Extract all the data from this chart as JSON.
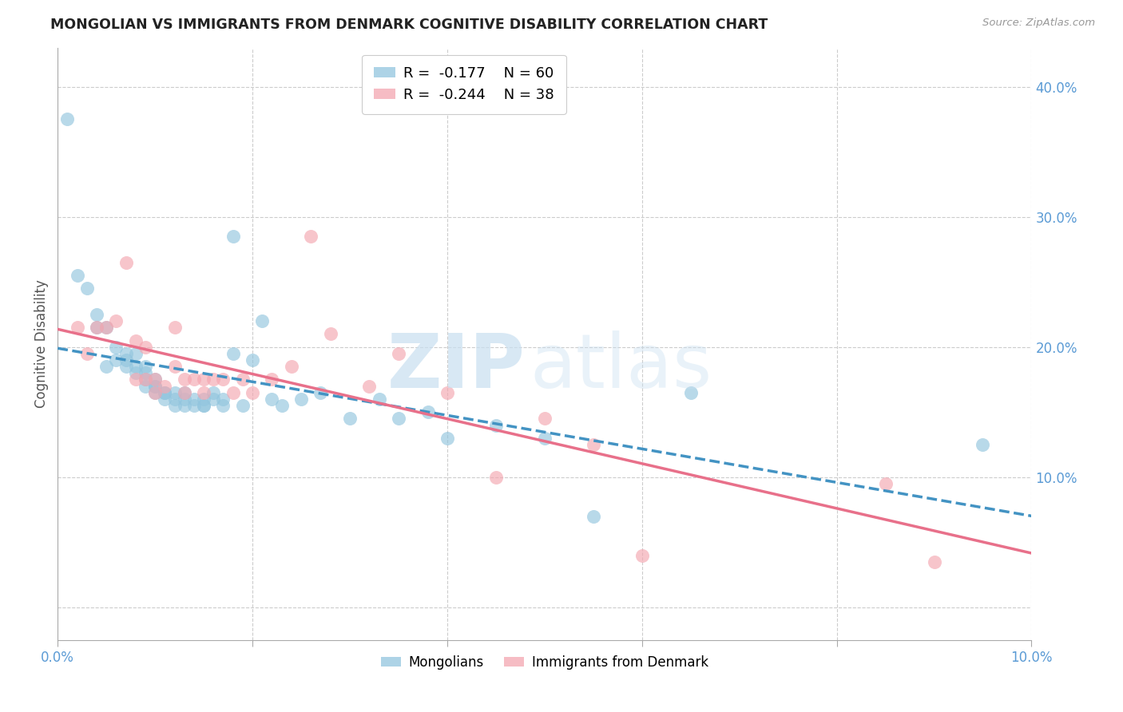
{
  "title": "MONGOLIAN VS IMMIGRANTS FROM DENMARK COGNITIVE DISABILITY CORRELATION CHART",
  "source": "Source: ZipAtlas.com",
  "ylabel": "Cognitive Disability",
  "right_yticks": [
    0.0,
    0.1,
    0.2,
    0.3,
    0.4
  ],
  "right_yticklabels": [
    "",
    "10.0%",
    "20.0%",
    "30.0%",
    "40.0%"
  ],
  "xlim": [
    0.0,
    0.1
  ],
  "ylim": [
    -0.025,
    0.43
  ],
  "mongolians_R": -0.177,
  "mongolians_N": 60,
  "denmark_R": -0.244,
  "denmark_N": 38,
  "blue_color": "#92c5de",
  "pink_color": "#f4a6b0",
  "blue_line_color": "#4393c3",
  "pink_line_color": "#e8708a",
  "mongolians_x": [
    0.001,
    0.002,
    0.003,
    0.004,
    0.004,
    0.005,
    0.005,
    0.006,
    0.006,
    0.007,
    0.007,
    0.007,
    0.008,
    0.008,
    0.008,
    0.009,
    0.009,
    0.009,
    0.009,
    0.01,
    0.01,
    0.01,
    0.01,
    0.011,
    0.011,
    0.011,
    0.012,
    0.012,
    0.012,
    0.013,
    0.013,
    0.013,
    0.014,
    0.014,
    0.015,
    0.015,
    0.015,
    0.016,
    0.016,
    0.017,
    0.017,
    0.018,
    0.018,
    0.019,
    0.02,
    0.021,
    0.022,
    0.023,
    0.025,
    0.027,
    0.03,
    0.033,
    0.035,
    0.038,
    0.04,
    0.045,
    0.05,
    0.055,
    0.065,
    0.095
  ],
  "mongolians_y": [
    0.375,
    0.255,
    0.245,
    0.225,
    0.215,
    0.215,
    0.185,
    0.2,
    0.19,
    0.195,
    0.19,
    0.185,
    0.195,
    0.185,
    0.18,
    0.185,
    0.18,
    0.175,
    0.17,
    0.175,
    0.17,
    0.17,
    0.165,
    0.165,
    0.165,
    0.16,
    0.165,
    0.16,
    0.155,
    0.16,
    0.165,
    0.155,
    0.16,
    0.155,
    0.16,
    0.155,
    0.155,
    0.165,
    0.16,
    0.16,
    0.155,
    0.285,
    0.195,
    0.155,
    0.19,
    0.22,
    0.16,
    0.155,
    0.16,
    0.165,
    0.145,
    0.16,
    0.145,
    0.15,
    0.13,
    0.14,
    0.13,
    0.07,
    0.165,
    0.125
  ],
  "denmark_x": [
    0.002,
    0.003,
    0.004,
    0.005,
    0.006,
    0.007,
    0.008,
    0.008,
    0.009,
    0.009,
    0.01,
    0.01,
    0.011,
    0.012,
    0.012,
    0.013,
    0.013,
    0.014,
    0.015,
    0.015,
    0.016,
    0.017,
    0.018,
    0.019,
    0.02,
    0.022,
    0.024,
    0.026,
    0.028,
    0.032,
    0.035,
    0.04,
    0.045,
    0.05,
    0.055,
    0.06,
    0.085,
    0.09
  ],
  "denmark_y": [
    0.215,
    0.195,
    0.215,
    0.215,
    0.22,
    0.265,
    0.205,
    0.175,
    0.2,
    0.175,
    0.175,
    0.165,
    0.17,
    0.215,
    0.185,
    0.175,
    0.165,
    0.175,
    0.175,
    0.165,
    0.175,
    0.175,
    0.165,
    0.175,
    0.165,
    0.175,
    0.185,
    0.285,
    0.21,
    0.17,
    0.195,
    0.165,
    0.1,
    0.145,
    0.125,
    0.04,
    0.095,
    0.035
  ]
}
